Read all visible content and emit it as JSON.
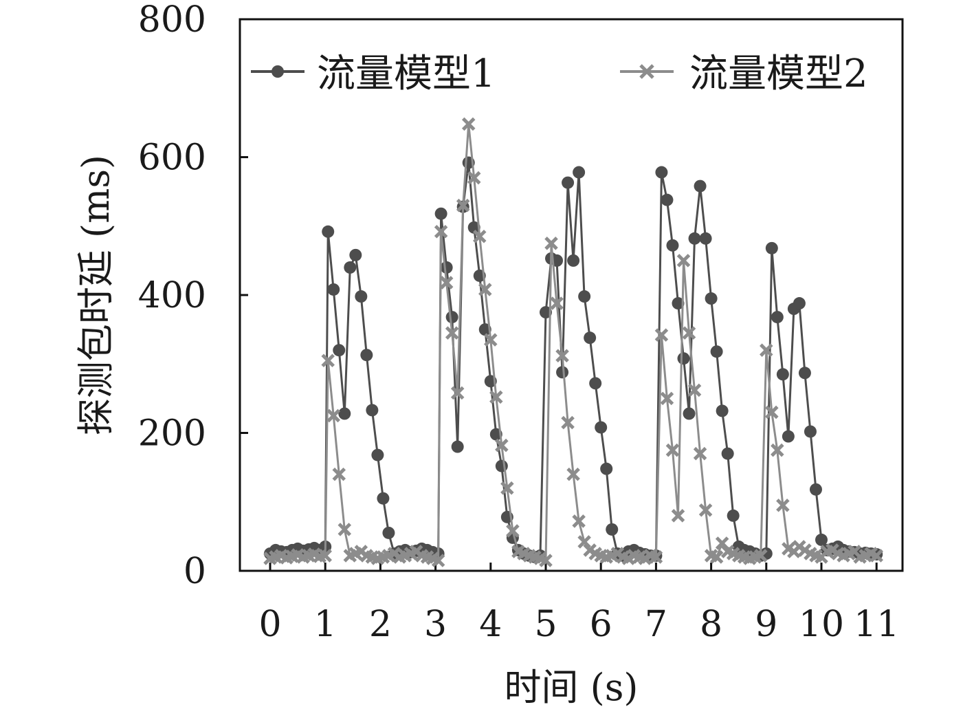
{
  "chart_data": {
    "type": "line",
    "title": "",
    "xlabel": "时间 (s)",
    "ylabel": "探测包时延 (ms)",
    "xlim": [
      -0.5,
      11.5
    ],
    "ylim": [
      0,
      800
    ],
    "xticks": [
      0,
      1,
      2,
      3,
      4,
      5,
      6,
      7,
      8,
      9,
      10,
      11
    ],
    "yticks": [
      0,
      200,
      400,
      600,
      800
    ],
    "legend_position": "top",
    "grid": false,
    "series": [
      {
        "name": "流量模型1",
        "marker": "circle",
        "color": "#4d4d4d",
        "x": [
          0.0,
          0.1,
          0.2,
          0.3,
          0.4,
          0.5,
          0.6,
          0.7,
          0.8,
          0.9,
          1.0,
          1.05,
          1.15,
          1.25,
          1.35,
          1.45,
          1.55,
          1.65,
          1.75,
          1.85,
          1.95,
          2.05,
          2.15,
          2.25,
          2.35,
          2.45,
          2.55,
          2.65,
          2.75,
          2.85,
          2.95,
          3.05,
          3.1,
          3.2,
          3.3,
          3.4,
          3.5,
          3.6,
          3.7,
          3.8,
          3.9,
          4.0,
          4.1,
          4.2,
          4.3,
          4.4,
          4.5,
          4.6,
          4.7,
          4.8,
          4.9,
          5.0,
          5.1,
          5.2,
          5.3,
          5.4,
          5.5,
          5.6,
          5.7,
          5.8,
          5.9,
          6.0,
          6.1,
          6.2,
          6.3,
          6.4,
          6.5,
          6.6,
          6.7,
          6.8,
          6.9,
          7.0,
          7.1,
          7.2,
          7.3,
          7.4,
          7.5,
          7.6,
          7.7,
          7.8,
          7.9,
          8.0,
          8.1,
          8.2,
          8.3,
          8.4,
          8.5,
          8.6,
          8.7,
          8.8,
          8.9,
          9.0,
          9.1,
          9.2,
          9.3,
          9.4,
          9.5,
          9.6,
          9.7,
          9.8,
          9.9,
          10.0,
          10.1,
          10.2,
          10.3,
          10.4,
          10.5,
          10.6,
          10.7,
          10.8,
          10.9,
          11.0
        ],
        "values": [
          25,
          30,
          28,
          27,
          30,
          32,
          29,
          31,
          33,
          30,
          35,
          492,
          408,
          320,
          228,
          440,
          458,
          398,
          313,
          233,
          168,
          105,
          55,
          25,
          28,
          30,
          27,
          29,
          32,
          30,
          27,
          25,
          518,
          440,
          368,
          180,
          528,
          592,
          498,
          428,
          350,
          275,
          198,
          152,
          78,
          48,
          30,
          25,
          22,
          20,
          22,
          375,
          453,
          450,
          288,
          563,
          450,
          578,
          398,
          338,
          272,
          208,
          148,
          60,
          25,
          22,
          28,
          30,
          26,
          24,
          22,
          22,
          578,
          538,
          472,
          388,
          308,
          228,
          482,
          558,
          482,
          395,
          318,
          232,
          170,
          80,
          35,
          30,
          28,
          25,
          22,
          25,
          468,
          368,
          285,
          195,
          380,
          388,
          287,
          202,
          118,
          45,
          30,
          32,
          35,
          30,
          28,
          27,
          25,
          26,
          25,
          24
        ]
      },
      {
        "name": "流量模型2",
        "marker": "x",
        "color": "#8c8c8c",
        "x": [
          0.0,
          0.1,
          0.2,
          0.3,
          0.4,
          0.5,
          0.6,
          0.7,
          0.8,
          0.9,
          1.0,
          1.05,
          1.15,
          1.25,
          1.35,
          1.45,
          1.55,
          1.65,
          1.75,
          1.85,
          1.95,
          2.05,
          2.15,
          2.25,
          2.35,
          2.45,
          2.55,
          2.65,
          2.75,
          2.85,
          2.95,
          3.05,
          3.1,
          3.2,
          3.3,
          3.4,
          3.5,
          3.6,
          3.7,
          3.8,
          3.9,
          4.0,
          4.1,
          4.2,
          4.3,
          4.4,
          4.5,
          4.6,
          4.7,
          4.8,
          4.9,
          5.0,
          5.1,
          5.2,
          5.3,
          5.4,
          5.5,
          5.6,
          5.7,
          5.8,
          5.9,
          6.0,
          6.1,
          6.2,
          6.3,
          6.4,
          6.5,
          6.6,
          6.7,
          6.8,
          6.9,
          7.0,
          7.1,
          7.2,
          7.3,
          7.4,
          7.5,
          7.6,
          7.7,
          7.8,
          7.9,
          8.0,
          8.1,
          8.2,
          8.3,
          8.4,
          8.5,
          8.6,
          8.7,
          8.8,
          8.9,
          9.0,
          9.1,
          9.2,
          9.3,
          9.4,
          9.5,
          9.6,
          9.7,
          9.8,
          9.9,
          10.0,
          10.1,
          10.2,
          10.3,
          10.4,
          10.5,
          10.6,
          10.7,
          10.8,
          10.9,
          11.0
        ],
        "values": [
          18,
          20,
          22,
          19,
          21,
          23,
          20,
          22,
          24,
          21,
          22,
          305,
          225,
          140,
          60,
          22,
          25,
          28,
          22,
          20,
          18,
          20,
          22,
          25,
          20,
          22,
          25,
          28,
          22,
          20,
          18,
          15,
          492,
          418,
          345,
          258,
          530,
          648,
          570,
          485,
          408,
          335,
          252,
          182,
          120,
          58,
          28,
          25,
          22,
          20,
          18,
          15,
          475,
          388,
          312,
          215,
          140,
          72,
          42,
          30,
          25,
          22,
          20,
          22,
          25,
          20,
          18,
          22,
          20,
          18,
          22,
          20,
          342,
          250,
          175,
          80,
          450,
          345,
          262,
          170,
          88,
          22,
          20,
          40,
          28,
          25,
          22,
          20,
          18,
          20,
          22,
          320,
          230,
          175,
          95,
          32,
          28,
          35,
          30,
          25,
          22,
          20,
          28,
          30,
          25,
          22,
          25,
          28,
          20,
          22,
          25,
          22
        ]
      }
    ]
  }
}
